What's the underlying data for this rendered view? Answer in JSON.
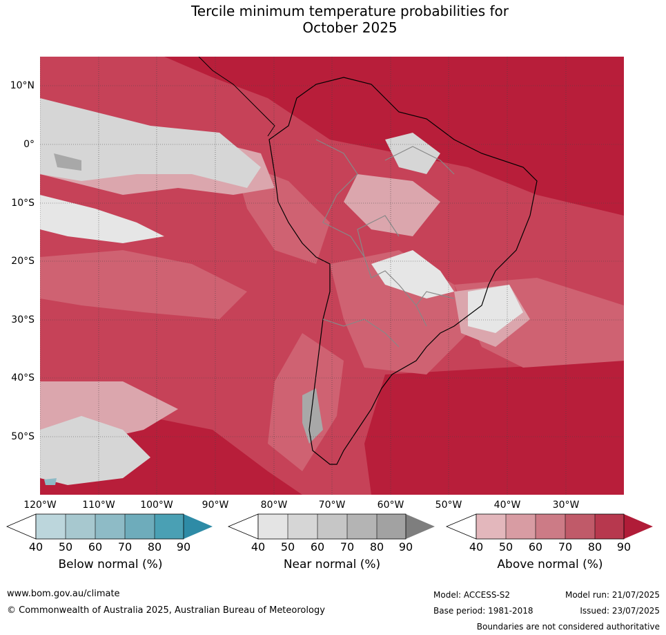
{
  "title": {
    "line1": "Tercile minimum temperature probabilities for",
    "line2": "October 2025"
  },
  "map": {
    "lat_labels": [
      "10°N",
      "0°",
      "10°S",
      "20°S",
      "30°S",
      "40°S",
      "50°S"
    ],
    "lon_labels": [
      "120°W",
      "110°W",
      "100°W",
      "90°W",
      "80°W",
      "70°W",
      "60°W",
      "50°W",
      "40°W",
      "30°W"
    ],
    "colors": {
      "ocean_base": "#c64258",
      "strong_red": "#b81e3a",
      "mid_red": "#cf6272",
      "light_pink": "#dba6ad",
      "near_light": "#e6e6e6",
      "near_mid": "#d6d6d6",
      "near_dark": "#a8a8a8"
    }
  },
  "colorbars": [
    {
      "label": "Below normal (%)",
      "ticks": [
        "40",
        "50",
        "60",
        "70",
        "80",
        "90"
      ],
      "colors": [
        "#bcd6dc",
        "#a7c8cf",
        "#8ebbc6",
        "#6eacbb",
        "#4aa0b4",
        "#2e8ba6"
      ]
    },
    {
      "label": "Near normal (%)",
      "ticks": [
        "40",
        "50",
        "60",
        "70",
        "80",
        "90"
      ],
      "colors": [
        "#e4e4e4",
        "#d6d6d6",
        "#c6c6c6",
        "#b4b4b4",
        "#a2a2a2",
        "#7e7e7e"
      ]
    },
    {
      "label": "Above normal (%)",
      "ticks": [
        "40",
        "50",
        "60",
        "70",
        "80",
        "90"
      ],
      "colors": [
        "#e3b7bc",
        "#d89ca3",
        "#cc7b86",
        "#c05a69",
        "#b7384e",
        "#b01c38"
      ]
    }
  ],
  "footer": {
    "website": "www.bom.gov.au/climate",
    "copyright": "© Commonwealth of Australia 2025, Australian Bureau of Meteorology",
    "model": "Model: ACCESS-S2",
    "base_period": "Base period: 1981-2018",
    "model_run": "Model run: 21/07/2025",
    "issued": "Issued: 23/07/2025",
    "disclaimer": "Boundaries are not considered authoritative"
  }
}
